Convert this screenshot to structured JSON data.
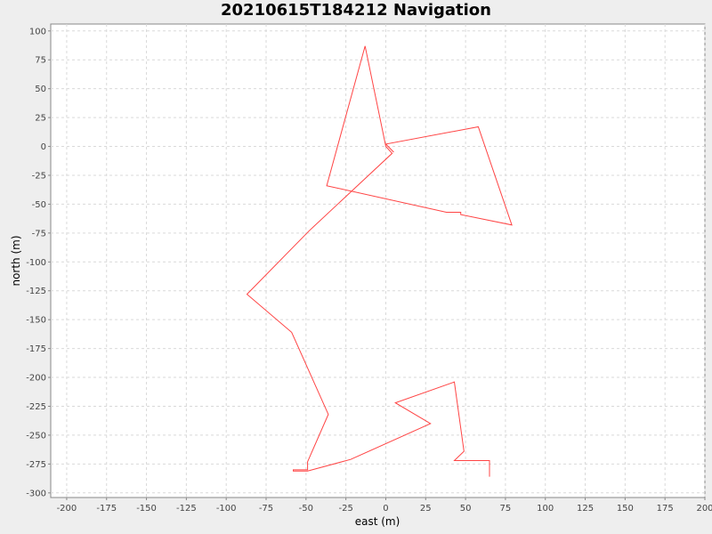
{
  "chart_data": {
    "type": "line",
    "title": "20210615T184212 Navigation",
    "xlabel": "east (m)",
    "ylabel": "north (m)",
    "xlim": [
      -210,
      200
    ],
    "ylim": [
      -304,
      106
    ],
    "x_ticks": [
      -200,
      -175,
      -150,
      -125,
      -100,
      -75,
      -50,
      -25,
      0,
      25,
      50,
      75,
      100,
      125,
      150,
      175,
      200
    ],
    "y_ticks": [
      100,
      75,
      50,
      25,
      0,
      -25,
      -50,
      -75,
      -100,
      -125,
      -150,
      -175,
      -200,
      -225,
      -250,
      -275,
      -300
    ],
    "grid": true,
    "series": [
      {
        "color": "#ff4444",
        "points": [
          [
            65,
            -286
          ],
          [
            65,
            -272
          ],
          [
            43,
            -272
          ],
          [
            49,
            -264
          ],
          [
            43,
            -204
          ],
          [
            6,
            -222
          ],
          [
            28,
            -240
          ],
          [
            -22,
            -271
          ],
          [
            -49,
            -281
          ],
          [
            -58,
            -281
          ],
          [
            -58,
            -280
          ],
          [
            -49,
            -280
          ],
          [
            -49,
            -273
          ],
          [
            -36,
            -232
          ],
          [
            -59,
            -161
          ],
          [
            -87,
            -128
          ],
          [
            -48,
            -73
          ],
          [
            4,
            -6
          ],
          [
            0,
            0
          ],
          [
            -13,
            87
          ],
          [
            -37,
            -34
          ],
          [
            38,
            -57
          ],
          [
            47,
            -57
          ],
          [
            47,
            -59
          ],
          [
            79,
            -68
          ],
          [
            58,
            17
          ],
          [
            0,
            2
          ],
          [
            5,
            -5
          ]
        ]
      }
    ]
  }
}
